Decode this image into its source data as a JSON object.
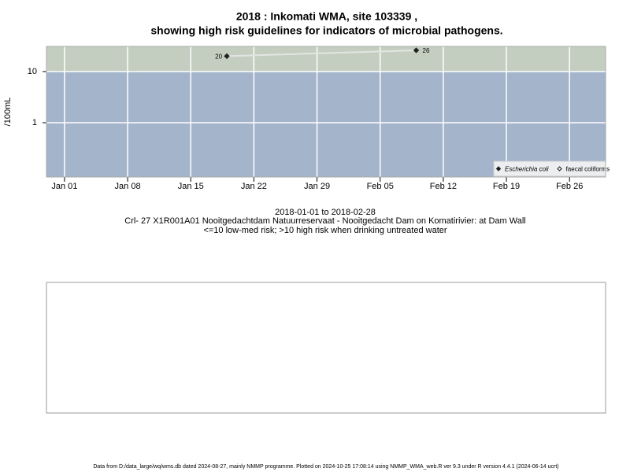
{
  "chart_data": {
    "type": "line",
    "title": "2018 : Inkomati WMA, site 103339 ,",
    "subtitle": "showing high risk guidelines for indicators of microbial pathogens.",
    "y_label": "/100mL",
    "captions": [
      "2018-01-01 to 2018-02-28",
      "Crl- 27 X1R001A01 Nooitgedachtdam Natuurreservaat - Nooitgedacht Dam on Komatirivier: at Dam Wall",
      "<=10 low-med risk; >10 high risk when drinking untreated water"
    ],
    "footer": "Data from D:/data_large/wq/wms.db dated 2024-08-27, mainly NMMP programme. Plotted on 2024-10-25 17:08:14 using NMMP_WMA_web.R ver 9.3 under R version 4.4.1 (2024-06-14 ucrt)",
    "x": [
      "2018-01-19",
      "2018-02-09"
    ],
    "series": [
      {
        "name": "Escherichia coli",
        "color": "#222222",
        "line_color": "#e2e6e2",
        "filled": true,
        "values": [
          20,
          26
        ]
      },
      {
        "name": "faecal coliforms",
        "color": "#222222",
        "line_color": "#e2e6e2",
        "filled": false,
        "values": [
          null,
          null
        ]
      }
    ],
    "threshold": 10,
    "high_color": "#c3cec0",
    "low_color": "#a3b4cb",
    "log_y": true,
    "grid": true,
    "legend": "bottom-right",
    "xlim": [
      "2017-12-30",
      "2018-03-02"
    ],
    "xticks": [
      {
        "value": "2018-01-01",
        "label": "Jan 01"
      },
      {
        "value": "2018-01-08",
        "label": "Jan 08"
      },
      {
        "value": "2018-01-15",
        "label": "Jan 15"
      },
      {
        "value": "2018-01-22",
        "label": "Jan 22"
      },
      {
        "value": "2018-01-29",
        "label": "Jan 29"
      },
      {
        "value": "2018-02-05",
        "label": "Feb 05"
      },
      {
        "value": "2018-02-12",
        "label": "Feb 12"
      },
      {
        "value": "2018-02-19",
        "label": "Feb 19"
      },
      {
        "value": "2018-02-26",
        "label": "Feb 26"
      }
    ],
    "ylim": [
      0.087,
      31
    ],
    "yticks": [
      1,
      10
    ]
  }
}
